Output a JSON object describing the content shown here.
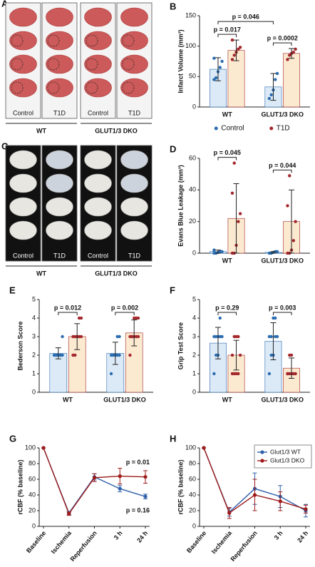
{
  "photo_panels": [
    {
      "letter": "A",
      "columns": [
        "Control",
        "T1D",
        "Control",
        "T1D"
      ],
      "groups": [
        "WT",
        "GLUT1/3 DKO"
      ]
    },
    {
      "letter": "C",
      "columns": [
        "Control",
        "T1D",
        "Control",
        "T1D"
      ],
      "groups": [
        "WT",
        "GLUT1/3 DKO"
      ]
    }
  ],
  "chart_data": [
    {
      "type": "bar",
      "panel_label": "B",
      "ylabel": "Infarct Volume (mm³)",
      "categories": [
        "WT",
        "GLUT1/3 DKO"
      ],
      "ylim": [
        0,
        150
      ],
      "yticks": [
        0,
        50,
        100,
        150
      ],
      "legend": "bottom",
      "pvalues": [
        "p = 0.017",
        "p = 0.0002"
      ],
      "pvalue_across": "p = 0.046",
      "series": [
        {
          "name": "Control",
          "color": "#dceaf7",
          "point_color": "#2b6cb0",
          "values": [
            62,
            33
          ],
          "errors": [
            19,
            22
          ],
          "points": [
            [
              45,
              48,
              58,
              65,
              75,
              80
            ],
            [
              14,
              20,
              28,
              45,
              55
            ]
          ]
        },
        {
          "name": "T1D",
          "color": "#fbe9d0",
          "point_color": "#a3262a",
          "values": [
            93,
            88
          ],
          "errors": [
            17,
            8
          ],
          "points": [
            [
              78,
              85,
              90,
              95,
              98,
              110
            ],
            [
              78,
              85,
              88,
              90,
              95
            ]
          ]
        }
      ]
    },
    {
      "type": "bar",
      "panel_label": "D",
      "ylabel": "Evans Blue Leakage (mm³)",
      "categories": [
        "WT",
        "GLUT1/3 DKO"
      ],
      "ylim": [
        0,
        60
      ],
      "yticks": [
        0,
        20,
        40,
        60
      ],
      "pvalues": [
        "p = 0.045",
        "p = 0.044"
      ],
      "series": [
        {
          "color": "#dceaf7",
          "point_color": "#2b6cb0",
          "values": [
            1,
            0.5
          ],
          "errors": [
            1,
            0.5
          ],
          "points": [
            [
              0,
              0,
              0.5,
              1,
              1,
              2
            ],
            [
              0,
              0,
              0.5,
              1,
              1
            ]
          ]
        },
        {
          "color": "#fbe9d0",
          "point_color": "#a3262a",
          "values": [
            22,
            20
          ],
          "errors": [
            22,
            20
          ],
          "points": [
            [
              0,
              0,
              5,
              20,
              25,
              38,
              57
            ],
            [
              0,
              0,
              2,
              8,
              20,
              30,
              49
            ]
          ]
        }
      ]
    },
    {
      "type": "bar",
      "panel_label": "E",
      "ylabel": "Bederson Score",
      "categories": [
        "WT",
        "GLUT1/3 DKO"
      ],
      "ylim": [
        0,
        5
      ],
      "yticks": [
        0,
        1,
        2,
        3,
        4,
        5
      ],
      "pvalues": [
        "p = 0.012",
        "p = 0.002"
      ],
      "series": [
        {
          "color": "#dceaf7",
          "point_color": "#2b6cb0",
          "values": [
            2.1,
            2.1
          ],
          "errors": [
            0.3,
            0.6
          ],
          "points": [
            [
              2,
              2,
              2,
              2,
              2,
              2,
              2,
              2,
              2,
              3
            ],
            [
              1,
              2,
              2,
              2,
              2,
              2,
              2,
              2,
              3,
              3
            ]
          ]
        },
        {
          "color": "#fbe9d0",
          "point_color": "#a3262a",
          "values": [
            3.0,
            3.2
          ],
          "errors": [
            0.7,
            0.7
          ],
          "points": [
            [
              2,
              2,
              3,
              3,
              3,
              3,
              3,
              3,
              4,
              4
            ],
            [
              2,
              3,
              3,
              3,
              3,
              3,
              3,
              4,
              4,
              4
            ]
          ]
        }
      ]
    },
    {
      "type": "bar",
      "panel_label": "F",
      "ylabel": "Grip Test Score",
      "categories": [
        "WT",
        "GLUT1/3 DKO"
      ],
      "ylim": [
        0,
        5
      ],
      "yticks": [
        0,
        1,
        2,
        3,
        4,
        5
      ],
      "pvalues": [
        "p = 0.29",
        "p = 0.003"
      ],
      "series": [
        {
          "color": "#dceaf7",
          "point_color": "#2b6cb0",
          "values": [
            2.65,
            2.75
          ],
          "errors": [
            0.85,
            1.0
          ],
          "points": [
            [
              1,
              2,
              2,
              3,
              3,
              3,
              3,
              3,
              4
            ],
            [
              1,
              2,
              2,
              3,
              3,
              3,
              3,
              4,
              4
            ]
          ]
        },
        {
          "color": "#fbe9d0",
          "point_color": "#a3262a",
          "values": [
            2.0,
            1.3
          ],
          "errors": [
            0.8,
            0.55
          ],
          "points": [
            [
              1,
              1,
              1,
              1,
              2,
              2,
              3,
              3,
              3
            ],
            [
              1,
              1,
              1,
              1,
              1,
              1,
              2,
              2
            ]
          ]
        }
      ]
    },
    {
      "type": "line",
      "panel_label": "G",
      "ylabel": "rCBF (% baseline)",
      "categories": [
        "Baseline",
        "Ischemia",
        "Reperfusion",
        "3 h",
        "24 h"
      ],
      "ylim": [
        0,
        100
      ],
      "yticks": [
        0,
        20,
        40,
        60,
        80,
        100
      ],
      "series": [
        {
          "color": "#2e5fa8",
          "values": [
            100,
            17,
            63,
            48,
            38
          ],
          "errors": [
            0,
            2,
            4,
            4,
            3
          ],
          "end_label": "p = 0.16"
        },
        {
          "color": "#9e1b1b",
          "values": [
            100,
            16,
            62,
            64,
            63
          ],
          "errors": [
            0,
            2,
            5,
            10,
            8
          ],
          "end_label": "p = 0.01"
        }
      ]
    },
    {
      "type": "line",
      "panel_label": "H",
      "ylabel": "rCBF (% baseline)",
      "categories": [
        "Baseline",
        "Ischemia",
        "Reperfusion",
        "3 h",
        "24 h"
      ],
      "ylim": [
        0,
        100
      ],
      "yticks": [
        0,
        20,
        40,
        60,
        80,
        100
      ],
      "legend": "upper right",
      "series": [
        {
          "name": "Glut1/3 WT",
          "color": "#2e5fa8",
          "values": [
            100,
            18,
            48,
            38,
            20
          ],
          "errors": [
            0,
            5,
            20,
            14,
            8
          ]
        },
        {
          "name": "Glut1/3 DKO",
          "color": "#9e1b1b",
          "values": [
            100,
            17,
            40,
            32,
            22
          ],
          "errors": [
            0,
            7,
            20,
            12,
            5
          ]
        }
      ]
    }
  ]
}
